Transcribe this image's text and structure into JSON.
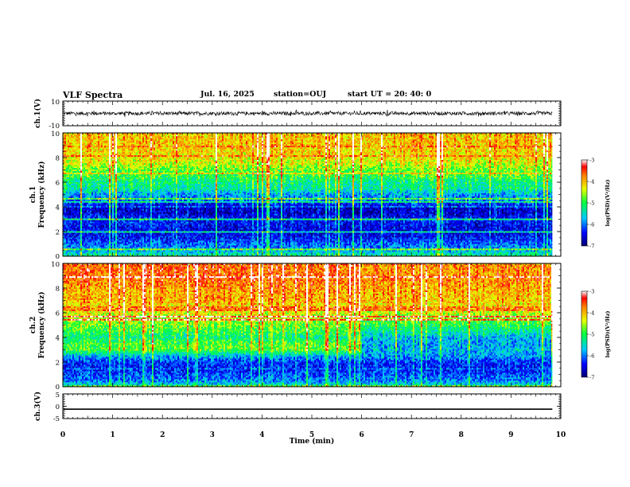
{
  "header": {
    "title": "VLF Spectra",
    "date": "Jul. 16, 2025",
    "station": "station=OUJ",
    "start": "start UT =  20: 40: 0"
  },
  "chart_data": [
    {
      "type": "line",
      "panel": "ch1_waveform",
      "ylabel": "ch.1(V)",
      "ylim": [
        -10,
        10
      ],
      "yticks": [
        "10",
        "-10"
      ],
      "xlim": [
        0,
        10
      ],
      "series": [
        {
          "baseline": 0,
          "approx_amplitude": 1.5,
          "spikes_reach": 3
        }
      ]
    },
    {
      "type": "heatmap",
      "panel": "ch1_spectrogram",
      "ylabel": "ch.1 Frequency (kHz)",
      "ylim": [
        0,
        10
      ],
      "yticks": [
        "0",
        "2",
        "4",
        "6",
        "8",
        "10"
      ],
      "xlim": [
        0,
        10
      ],
      "data_extent_min": 9.83,
      "colorbar": {
        "label": "log(PSD)(V²/Hz)",
        "range": [
          -7,
          -3
        ],
        "ticks": [
          "-3",
          "-4",
          "-5",
          "-6",
          "-7"
        ]
      },
      "profile_freq_khz": [
        0,
        0.5,
        1,
        1.5,
        2,
        2.5,
        3,
        3.5,
        4,
        4.5,
        5,
        5.5,
        6,
        6.5,
        7,
        7.5,
        8,
        8.5,
        9,
        9.5,
        10
      ],
      "profile_log_psd_before_2_5min": [
        -5.2,
        -5.9,
        -6.1,
        -6.4,
        -6.5,
        -6.4,
        -6.3,
        -6.6,
        -6.7,
        -6.1,
        -5.9,
        -5.4,
        -5.3,
        -5.0,
        -4.8,
        -4.5,
        -4.3,
        -4.2,
        -4.1,
        -4.1,
        -4.1
      ],
      "profile_log_psd_after_2_5min": [
        -5.2,
        -5.9,
        -6.1,
        -6.4,
        -6.6,
        -6.5,
        -6.4,
        -6.7,
        -6.7,
        -6.1,
        -5.9,
        -5.4,
        -5.3,
        -5.0,
        -4.8,
        -4.5,
        -4.3,
        -4.2,
        -4.1,
        -4.1,
        -4.1
      ]
    },
    {
      "type": "heatmap",
      "panel": "ch2_spectrogram",
      "ylabel": "ch.2 Frequency (kHz)",
      "ylim": [
        0,
        10
      ],
      "yticks": [
        "0",
        "2",
        "4",
        "6",
        "8",
        "10"
      ],
      "xlim": [
        0,
        10
      ],
      "data_extent_min": 9.83,
      "colorbar": {
        "label": "log(PSD)(V²/Hz)",
        "range": [
          -7,
          -3
        ],
        "ticks": [
          "-3",
          "-4",
          "-5",
          "-6",
          "-7"
        ]
      },
      "profile_freq_khz": [
        0,
        0.5,
        1,
        1.5,
        2,
        2.5,
        3,
        3.5,
        4,
        4.5,
        5,
        5.5,
        6,
        6.5,
        7,
        7.5,
        8,
        8.5,
        9,
        9.5,
        10
      ],
      "profile_log_psd_before_6min": [
        -5.3,
        -6.0,
        -6.2,
        -6.4,
        -6.3,
        -5.8,
        -4.9,
        -4.9,
        -5.3,
        -5.0,
        -4.8,
        -4.6,
        -4.4,
        -4.3,
        -4.0,
        -4.0,
        -3.9,
        -3.8,
        -3.7,
        -3.7,
        -3.7
      ],
      "profile_log_psd_after_6min": [
        -5.3,
        -6.0,
        -6.2,
        -6.4,
        -6.3,
        -5.9,
        -5.8,
        -5.9,
        -5.8,
        -5.4,
        -5.1,
        -4.8,
        -4.5,
        -4.3,
        -4.1,
        -4.1,
        -4.0,
        -3.9,
        -3.9,
        -3.9,
        -3.9
      ]
    },
    {
      "type": "line",
      "panel": "ch3_waveform",
      "ylabel": "ch.3(V)",
      "ylim": [
        -5,
        5
      ],
      "yticks": [
        "5",
        "0",
        "-5"
      ],
      "xlim": [
        0,
        10
      ],
      "series": [
        {
          "value": -1.2
        }
      ]
    }
  ],
  "xaxis": {
    "label": "Time (min)",
    "ticks": [
      "0",
      "1",
      "2",
      "3",
      "4",
      "5",
      "6",
      "7",
      "8",
      "9",
      "10"
    ]
  },
  "colors": {
    "line": "#000000",
    "frame": "#000000"
  }
}
